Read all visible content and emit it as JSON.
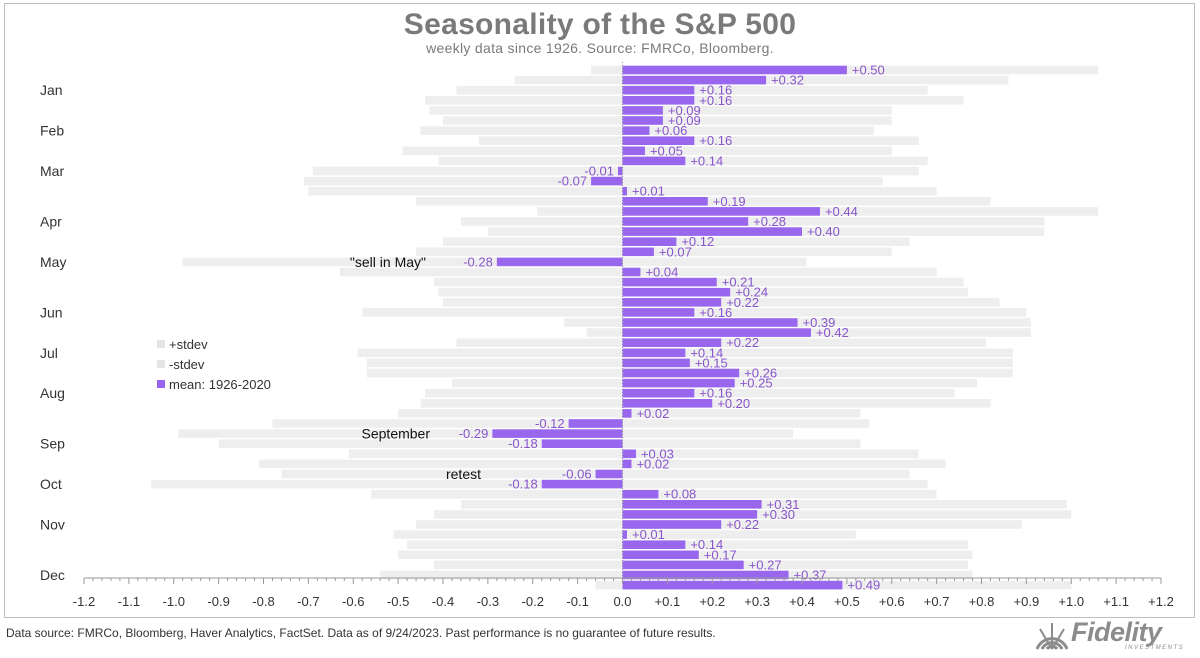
{
  "header": {
    "title": "Seasonality of the S&P 500",
    "subtitle": "weekly data since 1926.  Source: FMRCo, Bloomberg."
  },
  "footer": {
    "text": "Data source: FMRCo, Bloomberg, Haver Analytics, FactSet. Data as of 9/24/2023. Past performance is no guarantee of future results."
  },
  "logo": {
    "text": "Fidelity",
    "sub": "INVESTMENTS",
    "color": "#8c8c8c"
  },
  "colors": {
    "mean": "#9966ee",
    "stdev": "#eeeeee",
    "label": "#8855cc",
    "axis": "#999999",
    "text": "#333333"
  },
  "chart_data": {
    "type": "bar",
    "orientation": "horizontal",
    "title": "Seasonality of the S&P 500",
    "subtitle": "weekly data since 1926.  Source: FMRCo, Bloomberg.",
    "xlim": [
      -1.2,
      1.2
    ],
    "x_ticks": [
      "-1.2",
      "-1.1",
      "-1.0",
      "-0.9",
      "-0.8",
      "-0.7",
      "-0.6",
      "-0.5",
      "-0.4",
      "-0.3",
      "-0.2",
      "-0.1",
      "0.0",
      "+0.1",
      "+0.2",
      "+0.3",
      "+0.4",
      "+0.5",
      "+0.6",
      "+0.7",
      "+0.8",
      "+0.9",
      "+1.0",
      "+1.1",
      "+1.2"
    ],
    "grid": false,
    "legend_position": "left-middle",
    "month_labels": [
      {
        "label": "Jan",
        "week": 2
      },
      {
        "label": "Feb",
        "week": 6
      },
      {
        "label": "Mar",
        "week": 10
      },
      {
        "label": "Apr",
        "week": 15
      },
      {
        "label": "May",
        "week": 19
      },
      {
        "label": "Jun",
        "week": 24
      },
      {
        "label": "Jul",
        "week": 28
      },
      {
        "label": "Aug",
        "week": 32
      },
      {
        "label": "Sep",
        "week": 37
      },
      {
        "label": "Oct",
        "week": 41
      },
      {
        "label": "Nov",
        "week": 45
      },
      {
        "label": "Dec",
        "week": 50
      }
    ],
    "series": [
      {
        "name": "mean: 1926-2020",
        "values": [
          0.5,
          0.32,
          0.16,
          0.16,
          0.09,
          0.09,
          0.06,
          0.16,
          0.05,
          0.14,
          -0.01,
          -0.07,
          0.01,
          0.19,
          0.44,
          0.28,
          0.4,
          0.12,
          0.07,
          -0.28,
          0.04,
          0.21,
          0.24,
          0.22,
          0.16,
          0.39,
          0.42,
          0.22,
          0.14,
          0.15,
          0.26,
          0.25,
          0.16,
          0.2,
          0.02,
          -0.12,
          -0.29,
          -0.18,
          0.03,
          0.02,
          -0.06,
          -0.18,
          0.08,
          0.31,
          0.3,
          0.22,
          0.01,
          0.14,
          0.17,
          0.27,
          0.37,
          0.49
        ],
        "labels": [
          "+0.50",
          "+0.32",
          "+0.16",
          "+0.16",
          "+0.09",
          "+0.09",
          "+0.06",
          "+0.16",
          "+0.05",
          "+0.14",
          "-0.01",
          "-0.07",
          "+0.01",
          "+0.19",
          "+0.44",
          "+0.28",
          "+0.40",
          "+0.12",
          "+0.07",
          "-0.28",
          "+0.04",
          "+0.21",
          "+0.24",
          "+0.22",
          "+0.16",
          "+0.39",
          "+0.42",
          "+0.22",
          "+0.14",
          "+0.15",
          "+0.26",
          "+0.25",
          "+0.16",
          "+0.20",
          "+0.02",
          "-0.12",
          "-0.29",
          "-0.18",
          "+0.03",
          "+0.02",
          "-0.06",
          "-0.18",
          "+0.08",
          "+0.31",
          "+0.30",
          "+0.22",
          "+0.01",
          "+0.14",
          "+0.17",
          "+0.27",
          "+0.37",
          "+0.49"
        ]
      },
      {
        "name": "+stdev",
        "values": [
          1.06,
          0.86,
          0.68,
          0.76,
          0.6,
          0.6,
          0.56,
          0.66,
          0.6,
          0.68,
          0.66,
          0.58,
          0.7,
          0.82,
          1.06,
          0.94,
          0.94,
          0.64,
          0.6,
          0.41,
          0.7,
          0.76,
          0.77,
          0.84,
          0.9,
          0.91,
          0.91,
          0.81,
          0.87,
          0.87,
          0.87,
          0.79,
          0.74,
          0.82,
          0.53,
          0.55,
          0.38,
          0.53,
          0.66,
          0.72,
          0.64,
          0.68,
          0.7,
          0.99,
          1.0,
          0.89,
          0.52,
          0.77,
          0.78,
          0.77,
          0.78,
          1.0
        ]
      },
      {
        "name": "-stdev",
        "values": [
          -0.07,
          -0.24,
          -0.37,
          -0.44,
          -0.43,
          -0.4,
          -0.45,
          -0.32,
          -0.49,
          -0.41,
          -0.69,
          -0.71,
          -0.7,
          -0.46,
          -0.19,
          -0.36,
          -0.3,
          -0.4,
          -0.46,
          -0.98,
          -0.63,
          -0.42,
          -0.41,
          -0.4,
          -0.58,
          -0.13,
          -0.08,
          -0.37,
          -0.59,
          -0.57,
          -0.57,
          -0.38,
          -0.44,
          -0.45,
          -0.5,
          -0.78,
          -0.99,
          -0.9,
          -0.61,
          -0.81,
          -0.76,
          -1.05,
          -0.56,
          -0.36,
          -0.42,
          -0.46,
          -0.51,
          -0.48,
          -0.5,
          -0.42,
          -0.54,
          -0.06
        ]
      }
    ],
    "annotations": [
      {
        "text": "\"sell in May\"",
        "week": 19
      },
      {
        "text": "September",
        "week": 36
      },
      {
        "text": "retest",
        "week": 40
      }
    ]
  }
}
